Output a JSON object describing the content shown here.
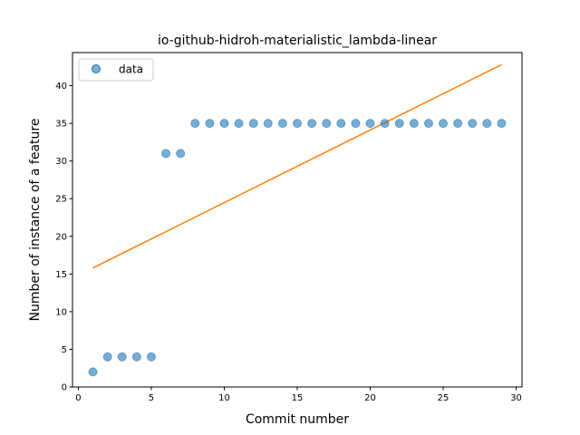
{
  "chart_data": {
    "type": "scatter",
    "title": "io-github-hidroh-materialistic_lambda-linear",
    "xlabel": "Commit number",
    "ylabel": "Number of instance of a feature",
    "xlim": [
      -0.4,
      30.4
    ],
    "ylim": [
      0,
      44.4
    ],
    "xticks": [
      0,
      5,
      10,
      15,
      20,
      25,
      30
    ],
    "yticks": [
      0,
      5,
      10,
      15,
      20,
      25,
      30,
      35,
      40
    ],
    "grid": false,
    "legend_position": "upper-left",
    "series": [
      {
        "name": "data",
        "kind": "scatter",
        "color": "#1f77b4",
        "x": [
          1,
          2,
          3,
          4,
          5,
          6,
          7,
          8,
          9,
          10,
          11,
          12,
          13,
          14,
          15,
          16,
          17,
          18,
          19,
          20,
          21,
          22,
          23,
          24,
          25,
          26,
          27,
          28,
          29
        ],
        "y": [
          2,
          4,
          4,
          4,
          4,
          31,
          31,
          35,
          35,
          35,
          35,
          35,
          35,
          35,
          35,
          35,
          35,
          35,
          35,
          35,
          35,
          35,
          35,
          35,
          35,
          35,
          35,
          35,
          35
        ]
      },
      {
        "kind": "line",
        "color": "#ff7f0e",
        "x": [
          1,
          29
        ],
        "y": [
          15.8,
          42.8
        ]
      }
    ]
  }
}
